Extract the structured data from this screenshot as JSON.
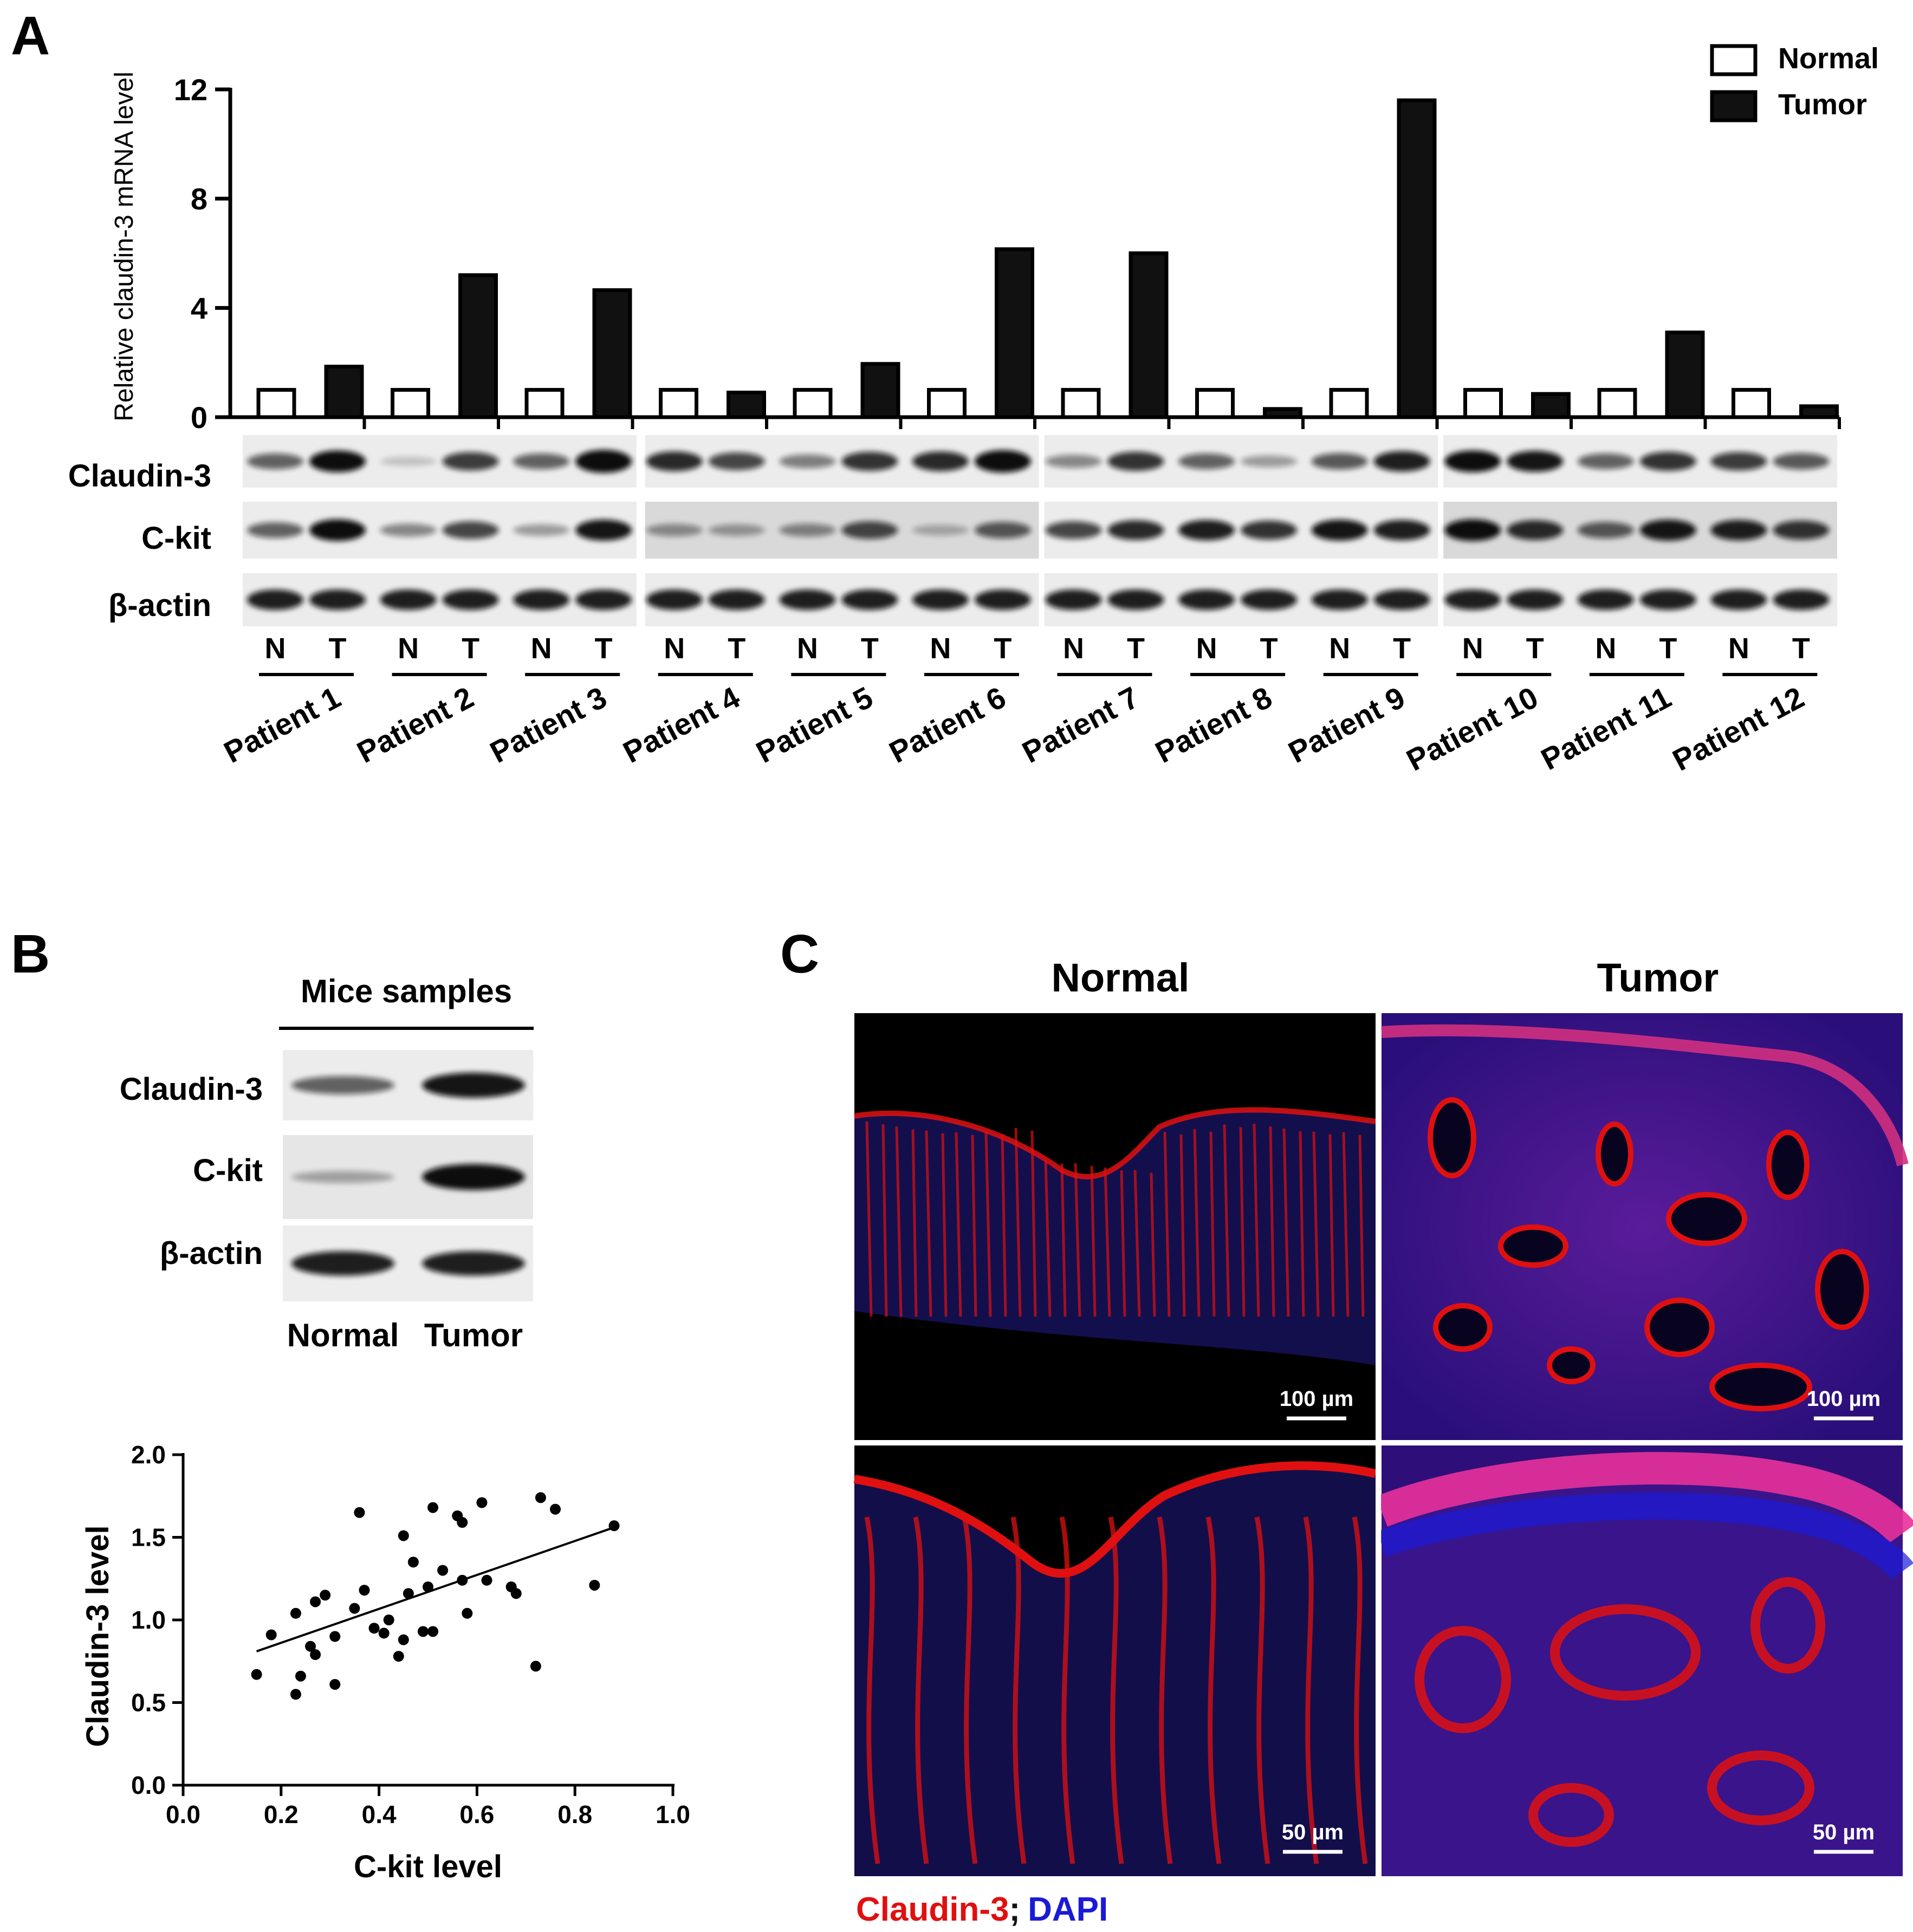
{
  "panels": {
    "a": {
      "letter": "A"
    },
    "b": {
      "letter": "B"
    },
    "c": {
      "letter": "C"
    }
  },
  "chart_data": [
    {
      "type": "bar",
      "ylabel": "Relative claudin-3 mRNA level",
      "ylim": [
        0,
        12
      ],
      "yticks": [
        "0",
        "4",
        "8",
        "12"
      ],
      "categories": [
        "Patient 1",
        "Patient 2",
        "Patient 3",
        "Patient 4",
        "Patient 5",
        "Patient 6",
        "Patient 7",
        "Patient 8",
        "Patient 9",
        "Patient 10",
        "Patient 11",
        "Patient 12"
      ],
      "series": [
        {
          "name": "Normal",
          "values": [
            1,
            1,
            1,
            1,
            1,
            1,
            1,
            1,
            1,
            1,
            1,
            1
          ],
          "fill": "#ffffff"
        },
        {
          "name": "Tumor",
          "values": [
            1.85,
            5.2,
            4.65,
            0.9,
            1.95,
            6.15,
            6.0,
            0.3,
            11.6,
            0.85,
            3.1,
            0.4
          ],
          "fill": "#111111"
        }
      ],
      "legend": "top-right",
      "grid": false
    },
    {
      "type": "scatter",
      "xlabel": "C-kit level",
      "ylabel": "Claudin-3 level",
      "xlim": [
        0,
        1.0
      ],
      "ylim": [
        0,
        2.0
      ],
      "xticks": [
        "0.0",
        "0.2",
        "0.4",
        "0.6",
        "0.8",
        "1.0"
      ],
      "yticks": [
        "0.0",
        "0.5",
        "1.0",
        "1.5",
        "2.0"
      ],
      "points": [
        [
          0.15,
          0.67
        ],
        [
          0.18,
          0.91
        ],
        [
          0.23,
          0.55
        ],
        [
          0.24,
          0.66
        ],
        [
          0.23,
          1.04
        ],
        [
          0.26,
          0.84
        ],
        [
          0.27,
          0.79
        ],
        [
          0.27,
          1.11
        ],
        [
          0.29,
          1.15
        ],
        [
          0.31,
          0.9
        ],
        [
          0.31,
          0.61
        ],
        [
          0.35,
          1.07
        ],
        [
          0.36,
          1.65
        ],
        [
          0.37,
          1.18
        ],
        [
          0.39,
          0.95
        ],
        [
          0.41,
          0.92
        ],
        [
          0.42,
          1.0
        ],
        [
          0.44,
          0.78
        ],
        [
          0.45,
          0.88
        ],
        [
          0.45,
          1.51
        ],
        [
          0.46,
          1.16
        ],
        [
          0.47,
          1.35
        ],
        [
          0.49,
          0.93
        ],
        [
          0.5,
          1.2
        ],
        [
          0.51,
          0.93
        ],
        [
          0.51,
          1.68
        ],
        [
          0.53,
          1.3
        ],
        [
          0.56,
          1.63
        ],
        [
          0.57,
          1.59
        ],
        [
          0.57,
          1.24
        ],
        [
          0.58,
          1.04
        ],
        [
          0.61,
          1.71
        ],
        [
          0.62,
          1.24
        ],
        [
          0.67,
          1.2
        ],
        [
          0.68,
          1.16
        ],
        [
          0.72,
          0.72
        ],
        [
          0.73,
          1.74
        ],
        [
          0.76,
          1.67
        ],
        [
          0.84,
          1.21
        ],
        [
          0.88,
          1.57
        ]
      ],
      "fit_line": [
        [
          0.15,
          0.81
        ],
        [
          0.88,
          1.56
        ]
      ]
    }
  ],
  "blot_a": {
    "rows": [
      "Claudin-3",
      "C-kit",
      "β-actin"
    ],
    "lane_labels": [
      "N",
      "T"
    ]
  },
  "blot_b": {
    "header": "Mice samples",
    "rows": [
      "Claudin-3",
      "C-kit",
      "β-actin"
    ],
    "normal_label": "Normal",
    "tumor_label": "Tumor"
  },
  "micro": {
    "col_normal": "Normal",
    "col_tumor": "Tumor",
    "scale_top": "100 µm",
    "scale_bottom": "50 µm",
    "caption_red": "Claudin-3",
    "caption_sep": ";",
    "caption_blue": "DAPI",
    "red": "#e01010",
    "blue": "#1a1ad8"
  }
}
